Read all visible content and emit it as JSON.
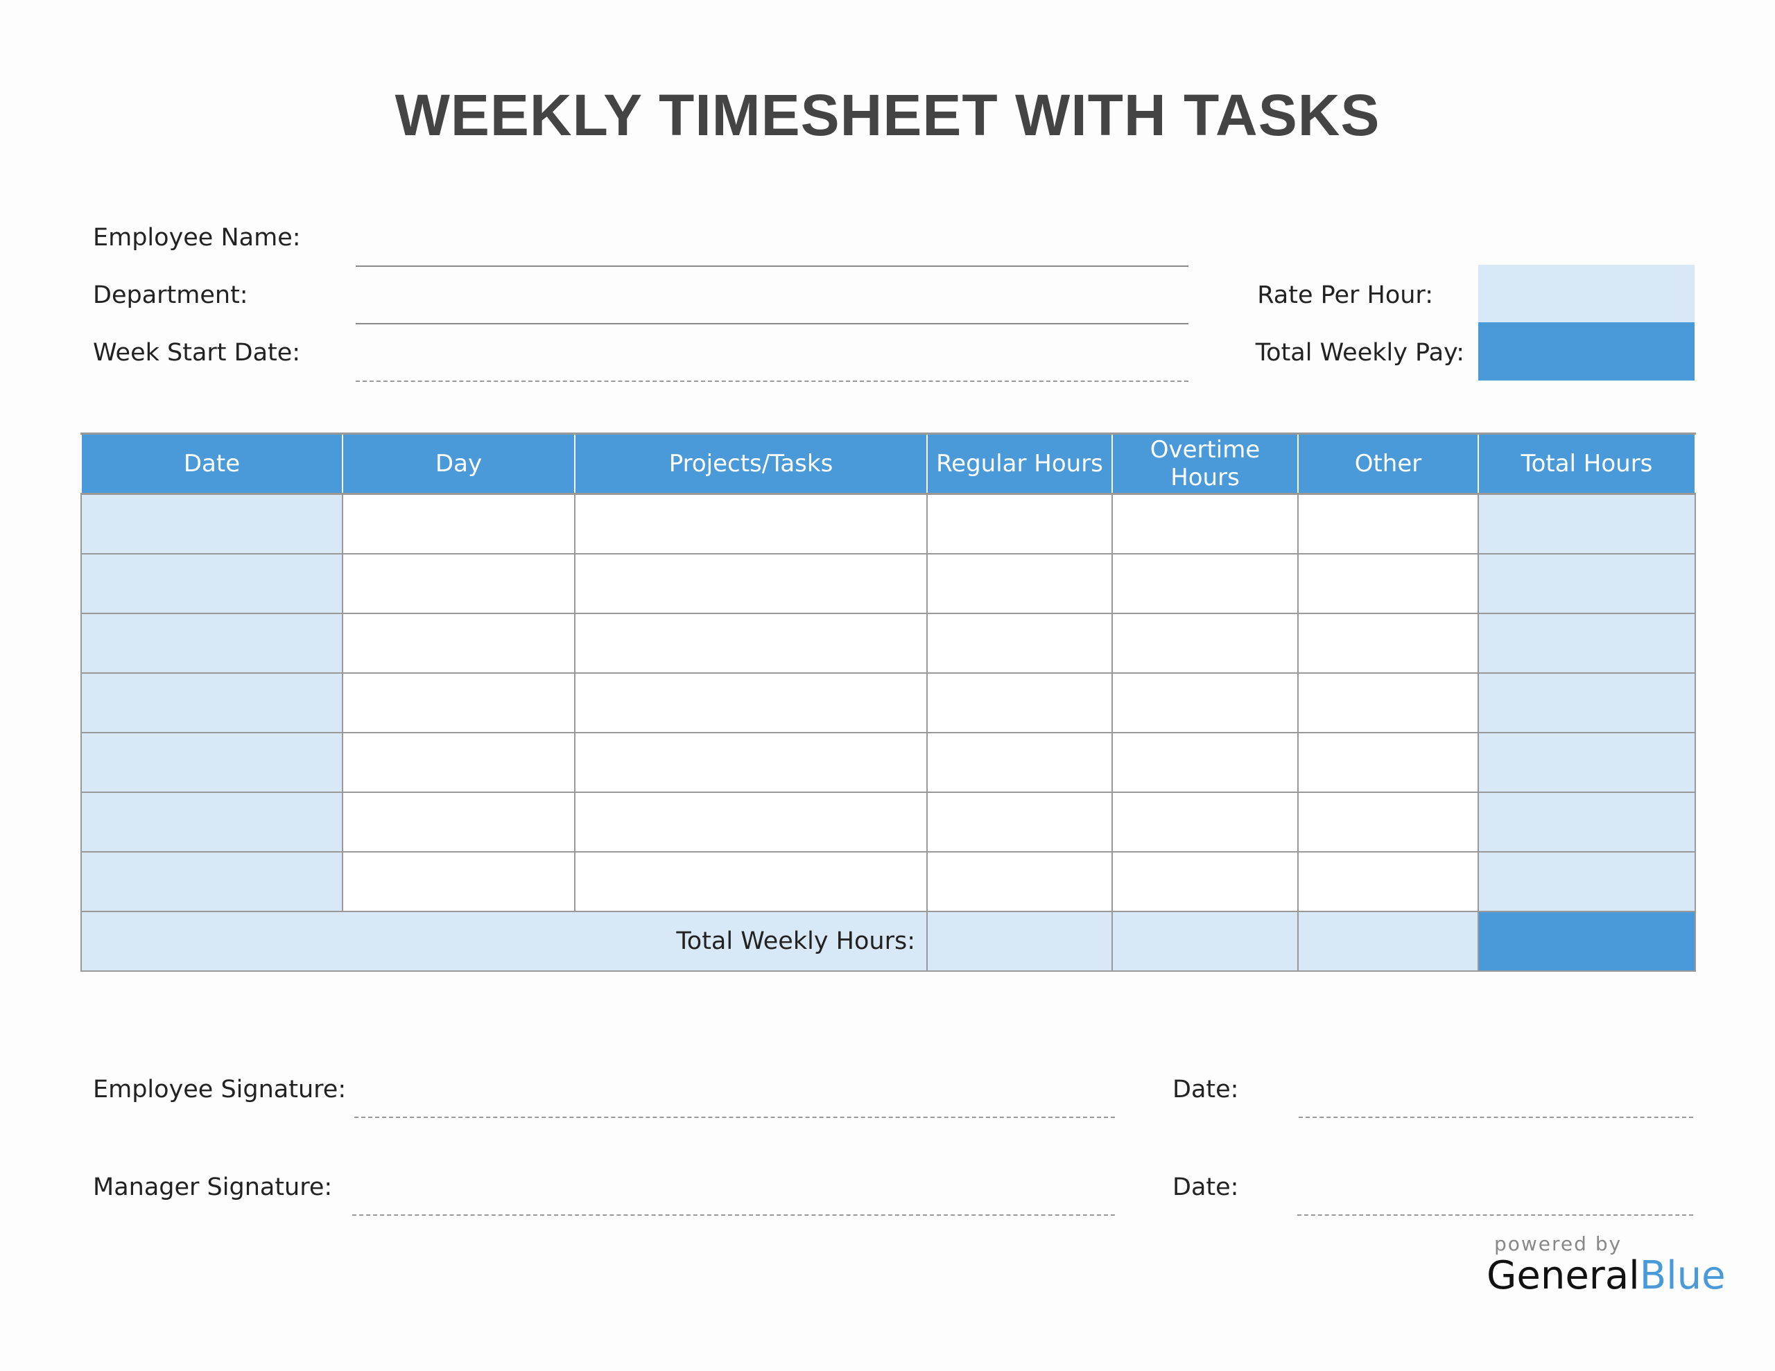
{
  "title": "WEEKLY TIMESHEET WITH TASKS",
  "fields": {
    "employee_name": "Employee Name:",
    "department": "Department:",
    "week_start_date": "Week Start Date:",
    "rate_per_hour": "Rate Per Hour:",
    "total_weekly_pay": "Total Weekly Pay:"
  },
  "table": {
    "headers": [
      "Date",
      "Day",
      "Projects/Tasks",
      "Regular Hours",
      "Overtime Hours",
      "Other",
      "Total Hours"
    ],
    "row_count": 7,
    "footer_label": "Total Weekly Hours:"
  },
  "signatures": {
    "employee": "Employee Signature:",
    "manager": "Manager Signature:",
    "date1": "Date:",
    "date2": "Date:"
  },
  "logo": {
    "powered_by": "powered by",
    "brand_part1": "General",
    "brand_part2": "Blue"
  },
  "colors": {
    "accent": "#4a9ad9",
    "light": "#d9e8f6",
    "title": "#444444"
  }
}
